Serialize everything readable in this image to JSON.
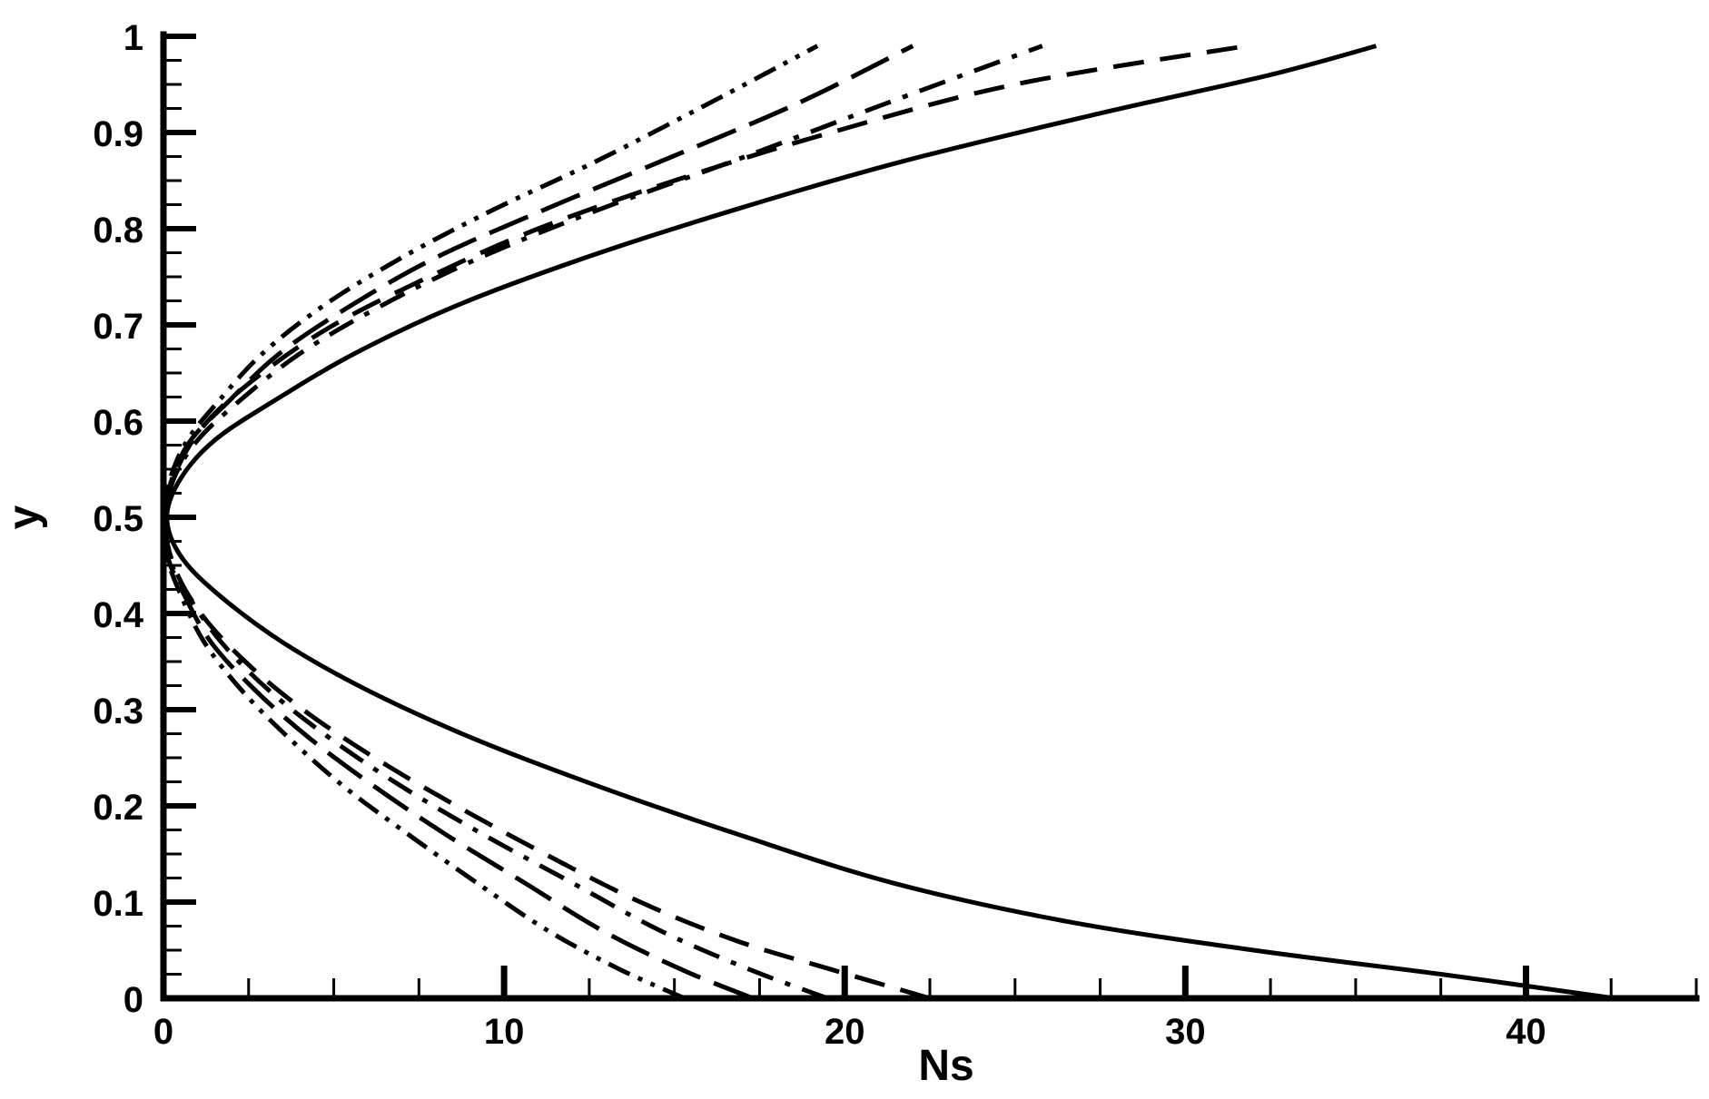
{
  "chart_data": {
    "type": "line",
    "title": "",
    "xlabel": "Ns",
    "ylabel": "y",
    "xlim": [
      0,
      45
    ],
    "ylim": [
      0,
      1
    ],
    "grid": false,
    "legend": "none",
    "x_ticks": [
      "0",
      "10",
      "20",
      "30",
      "40"
    ],
    "y_ticks": [
      "0",
      "0.1",
      "0.2",
      "0.3",
      "0.4",
      "0.5",
      "0.6",
      "0.7",
      "0.8",
      "0.9",
      "1"
    ],
    "series": [
      {
        "style": "solid",
        "points": [
          [
            42.6,
            0.0
          ],
          [
            37.5,
            0.025
          ],
          [
            32.0,
            0.05
          ],
          [
            26.5,
            0.08
          ],
          [
            21.4,
            0.12
          ],
          [
            16.9,
            0.17
          ],
          [
            12.8,
            0.22
          ],
          [
            9.1,
            0.27
          ],
          [
            6.0,
            0.32
          ],
          [
            3.5,
            0.37
          ],
          [
            1.6,
            0.42
          ],
          [
            0.5,
            0.46
          ],
          [
            0.1,
            0.5
          ],
          [
            0.5,
            0.54
          ],
          [
            1.5,
            0.58
          ],
          [
            3.2,
            0.62
          ],
          [
            5.6,
            0.67
          ],
          [
            8.6,
            0.72
          ],
          [
            12.4,
            0.77
          ],
          [
            16.8,
            0.82
          ],
          [
            21.7,
            0.87
          ],
          [
            27.5,
            0.92
          ],
          [
            32.5,
            0.96
          ],
          [
            35.6,
            0.99
          ]
        ]
      },
      {
        "style": "dashed",
        "points": [
          [
            22.5,
            0.0
          ],
          [
            19.6,
            0.03
          ],
          [
            16.8,
            0.06
          ],
          [
            14.0,
            0.1
          ],
          [
            11.2,
            0.15
          ],
          [
            8.6,
            0.2
          ],
          [
            6.2,
            0.25
          ],
          [
            4.1,
            0.3
          ],
          [
            2.4,
            0.35
          ],
          [
            1.1,
            0.4
          ],
          [
            0.3,
            0.45
          ],
          [
            0.05,
            0.5
          ],
          [
            0.4,
            0.55
          ],
          [
            1.3,
            0.6
          ],
          [
            2.9,
            0.65
          ],
          [
            5.0,
            0.7
          ],
          [
            7.8,
            0.75
          ],
          [
            11.0,
            0.8
          ],
          [
            15.0,
            0.85
          ],
          [
            19.6,
            0.9
          ],
          [
            25.0,
            0.95
          ],
          [
            31.8,
            0.99
          ]
        ]
      },
      {
        "style": "dash-dot",
        "points": [
          [
            19.5,
            0.0
          ],
          [
            17.2,
            0.03
          ],
          [
            14.6,
            0.07
          ],
          [
            12.0,
            0.12
          ],
          [
            9.4,
            0.17
          ],
          [
            7.0,
            0.22
          ],
          [
            4.9,
            0.27
          ],
          [
            3.1,
            0.32
          ],
          [
            1.7,
            0.37
          ],
          [
            0.7,
            0.42
          ],
          [
            0.15,
            0.46
          ],
          [
            0.05,
            0.5
          ],
          [
            0.3,
            0.54
          ],
          [
            1.0,
            0.58
          ],
          [
            2.2,
            0.62
          ],
          [
            4.0,
            0.67
          ],
          [
            6.4,
            0.72
          ],
          [
            9.3,
            0.77
          ],
          [
            12.8,
            0.82
          ],
          [
            16.7,
            0.87
          ],
          [
            21.2,
            0.93
          ],
          [
            25.8,
            0.99
          ]
        ]
      },
      {
        "style": "long-dash",
        "points": [
          [
            17.3,
            0.0
          ],
          [
            15.2,
            0.03
          ],
          [
            12.9,
            0.07
          ],
          [
            10.6,
            0.12
          ],
          [
            8.3,
            0.17
          ],
          [
            6.2,
            0.22
          ],
          [
            4.3,
            0.27
          ],
          [
            2.7,
            0.32
          ],
          [
            1.4,
            0.37
          ],
          [
            0.6,
            0.42
          ],
          [
            0.12,
            0.46
          ],
          [
            0.05,
            0.5
          ],
          [
            0.25,
            0.54
          ],
          [
            0.8,
            0.58
          ],
          [
            1.9,
            0.62
          ],
          [
            3.4,
            0.67
          ],
          [
            5.5,
            0.72
          ],
          [
            8.0,
            0.77
          ],
          [
            11.2,
            0.82
          ],
          [
            14.6,
            0.87
          ],
          [
            18.6,
            0.93
          ],
          [
            22.0,
            0.99
          ]
        ]
      },
      {
        "style": "dash-dot-dot",
        "points": [
          [
            15.3,
            0.0
          ],
          [
            13.4,
            0.03
          ],
          [
            11.3,
            0.07
          ],
          [
            9.2,
            0.12
          ],
          [
            7.2,
            0.17
          ],
          [
            5.3,
            0.22
          ],
          [
            3.7,
            0.27
          ],
          [
            2.3,
            0.32
          ],
          [
            1.2,
            0.37
          ],
          [
            0.5,
            0.42
          ],
          [
            0.1,
            0.46
          ],
          [
            0.05,
            0.5
          ],
          [
            0.2,
            0.54
          ],
          [
            0.7,
            0.58
          ],
          [
            1.6,
            0.62
          ],
          [
            2.9,
            0.67
          ],
          [
            4.7,
            0.72
          ],
          [
            7.0,
            0.77
          ],
          [
            9.7,
            0.82
          ],
          [
            12.7,
            0.87
          ],
          [
            16.0,
            0.93
          ],
          [
            19.2,
            0.99
          ]
        ]
      }
    ]
  }
}
